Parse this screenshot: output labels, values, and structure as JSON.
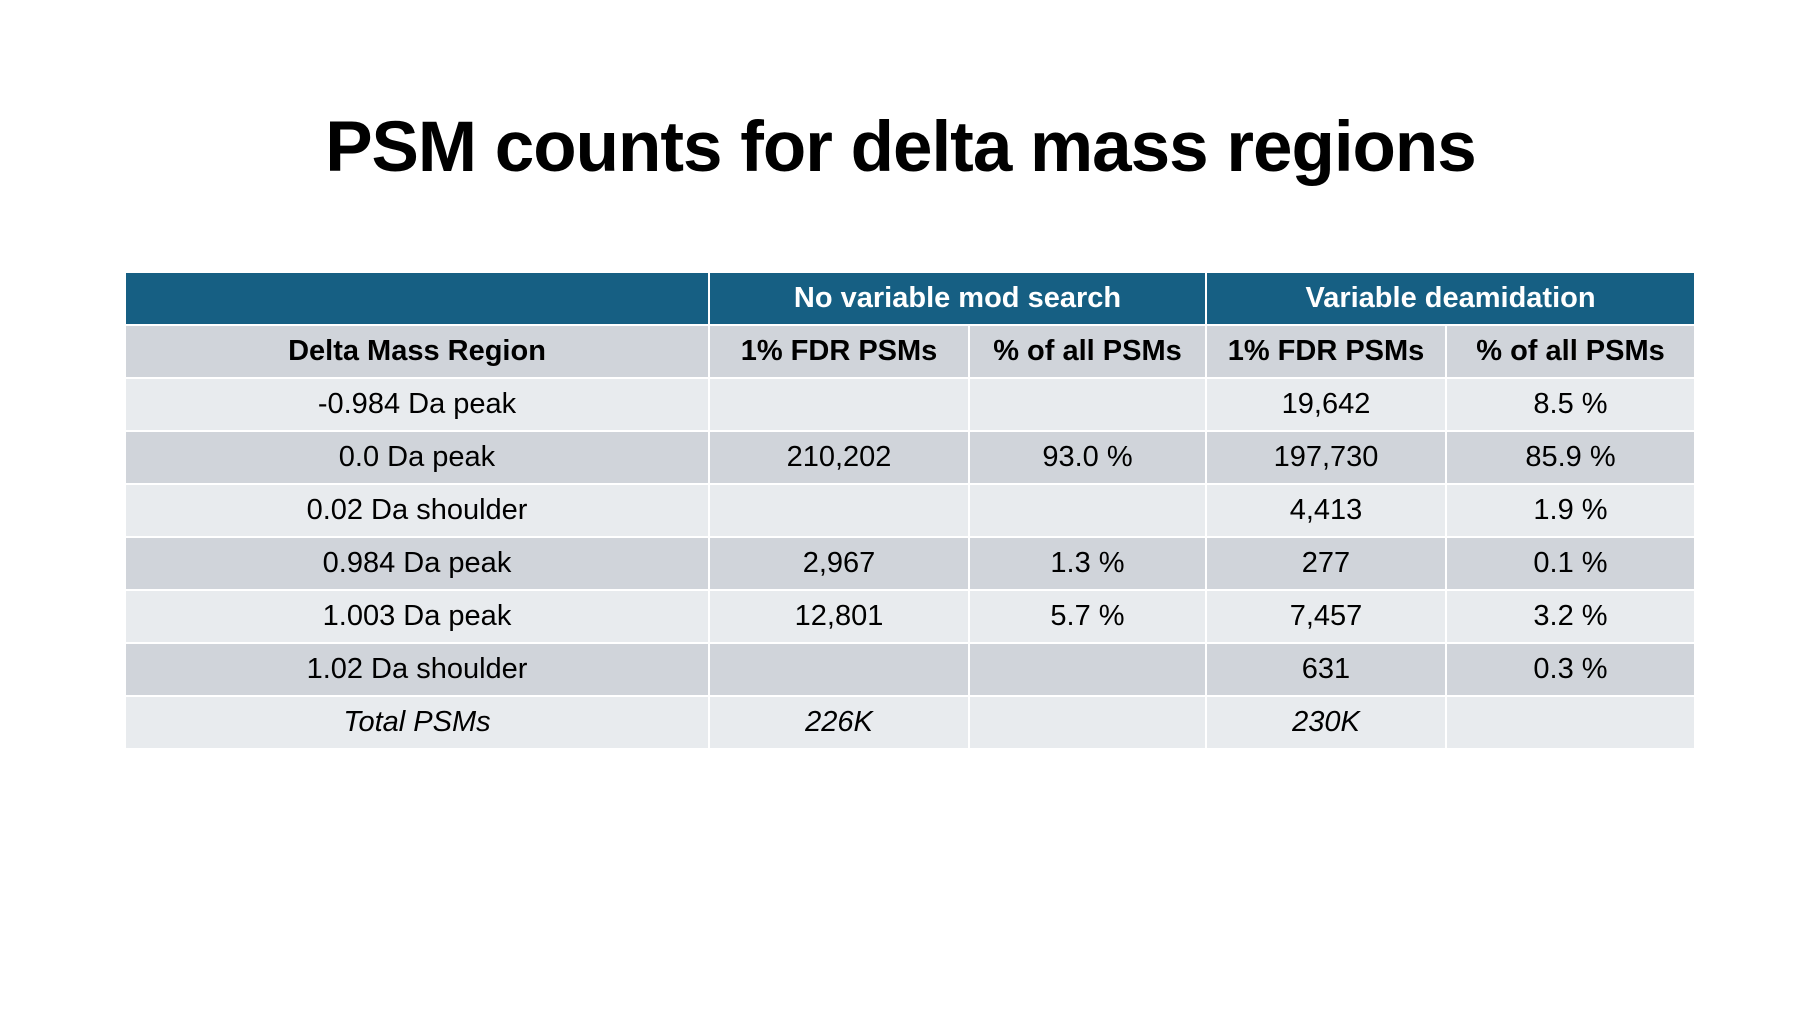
{
  "title": "PSM counts for delta mass regions",
  "table": {
    "group_headers": [
      "",
      "No variable mod search",
      "Variable deamidation"
    ],
    "column_headers": [
      "Delta Mass Region",
      "1% FDR PSMs",
      "% of all PSMs",
      "1% FDR PSMs",
      "% of all PSMs"
    ],
    "rows": [
      {
        "region": "-0.984 Da peak",
        "nvm_psms": "",
        "nvm_pct": "",
        "vd_psms": "19,642",
        "vd_pct": "8.5 %"
      },
      {
        "region": "0.0 Da peak",
        "nvm_psms": "210,202",
        "nvm_pct": "93.0 %",
        "vd_psms": "197,730",
        "vd_pct": "85.9 %"
      },
      {
        "region": "0.02 Da shoulder",
        "nvm_psms": "",
        "nvm_pct": "",
        "vd_psms": "4,413",
        "vd_pct": "1.9 %"
      },
      {
        "region": "0.984 Da peak",
        "nvm_psms": "2,967",
        "nvm_pct": "1.3 %",
        "vd_psms": "277",
        "vd_pct": "0.1 %"
      },
      {
        "region": "1.003 Da peak",
        "nvm_psms": "12,801",
        "nvm_pct": "5.7 %",
        "vd_psms": "7,457",
        "vd_pct": "3.2 %"
      },
      {
        "region": "1.02 Da shoulder",
        "nvm_psms": "",
        "nvm_pct": "",
        "vd_psms": "631",
        "vd_pct": "0.3 %"
      },
      {
        "region": "Total PSMs",
        "nvm_psms": "226K",
        "nvm_pct": "",
        "vd_psms": "230K",
        "vd_pct": ""
      }
    ]
  },
  "colors": {
    "header_bg": "#165f83",
    "header_text": "#ffffff",
    "row_dark": "#d0d4da",
    "row_light": "#e8ebee"
  }
}
